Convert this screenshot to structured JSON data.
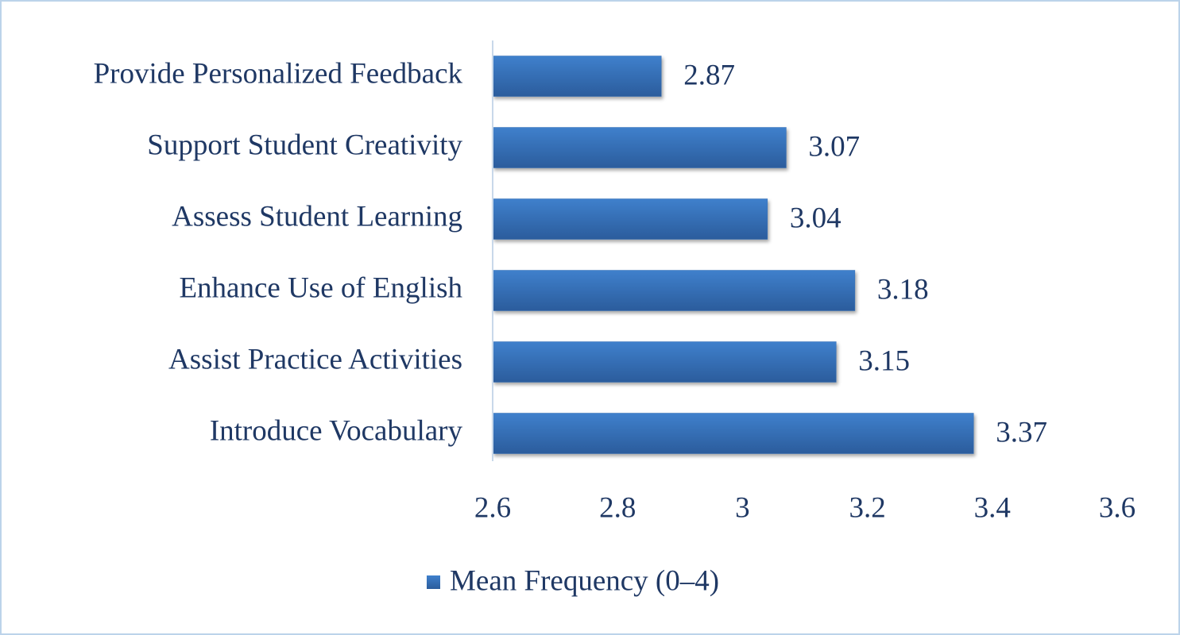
{
  "chart_data": {
    "type": "bar",
    "orientation": "horizontal",
    "categories": [
      "Provide Personalized Feedback",
      "Support Student Creativity",
      "Assess Student Learning",
      "Enhance Use of English",
      "Assist Practice Activities",
      "Introduce Vocabulary"
    ],
    "series": [
      {
        "name": "Mean Frequency (0–4)",
        "color": "#3570b8",
        "values": [
          2.87,
          3.07,
          3.04,
          3.18,
          3.15,
          3.37
        ]
      }
    ],
    "xlim": [
      2.6,
      3.6
    ],
    "xticks": [
      2.6,
      2.8,
      3,
      3.2,
      3.4,
      3.6
    ],
    "grid": false,
    "legend": "bottom"
  }
}
